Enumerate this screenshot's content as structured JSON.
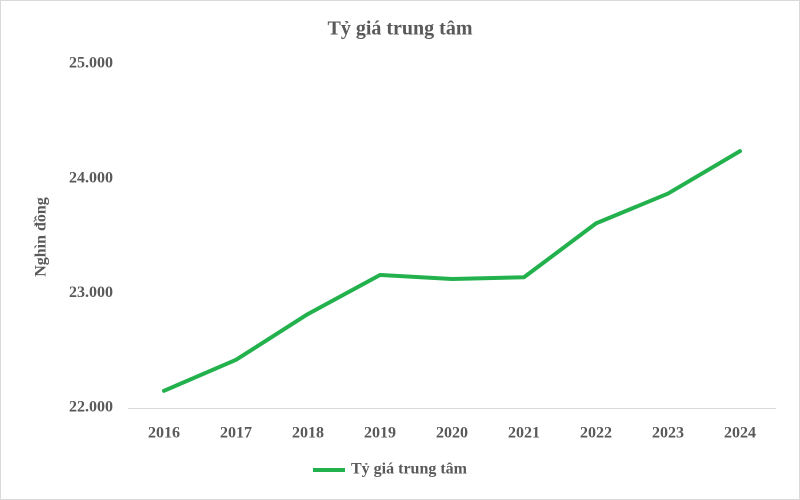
{
  "chart_data": {
    "type": "line",
    "title": "Tỷ giá trung tâm",
    "y_label": "Nghìn đồng",
    "categories": [
      "2016",
      "2017",
      "2018",
      "2019",
      "2020",
      "2021",
      "2022",
      "2023",
      "2024"
    ],
    "series": [
      {
        "name": "Tỷ giá trung tâm",
        "color": "#22b14c",
        "values": [
          22150,
          22420,
          22820,
          23160,
          23125,
          23140,
          23610,
          23870,
          24240
        ]
      }
    ],
    "ylim": [
      22000,
      25000
    ],
    "yticks": [
      {
        "value": 22000,
        "label": "22.000"
      },
      {
        "value": 23000,
        "label": "23.000"
      },
      {
        "value": 24000,
        "label": "24.000"
      },
      {
        "value": 25000,
        "label": "25.000"
      }
    ],
    "grid": false,
    "legend": "bottom"
  }
}
